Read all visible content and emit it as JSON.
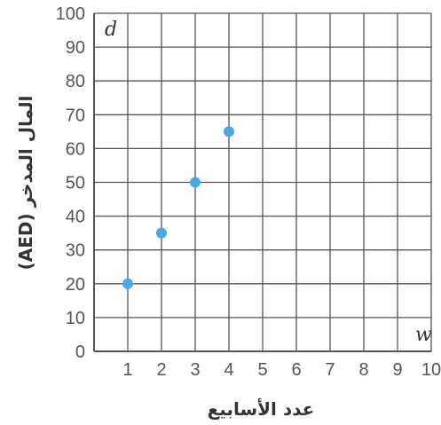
{
  "chart_data": {
    "type": "scatter",
    "x": [
      1,
      2,
      3,
      4
    ],
    "y": [
      20,
      35,
      50,
      65
    ],
    "xlim": [
      0,
      10
    ],
    "ylim": [
      0,
      100
    ],
    "x_ticks": [
      "1",
      "2",
      "3",
      "4",
      "5",
      "6",
      "7",
      "8",
      "9",
      "10"
    ],
    "y_ticks": [
      "0",
      "10",
      "20",
      "30",
      "40",
      "50",
      "60",
      "70",
      "80",
      "90",
      "100"
    ],
    "x_variable": "w",
    "y_variable": "d",
    "xlabel": "عدد الأسابيع",
    "ylabel": "المال المدخر (AED)",
    "grid": true,
    "point_color": "#4aa8e8",
    "grid_color": "#555555"
  }
}
